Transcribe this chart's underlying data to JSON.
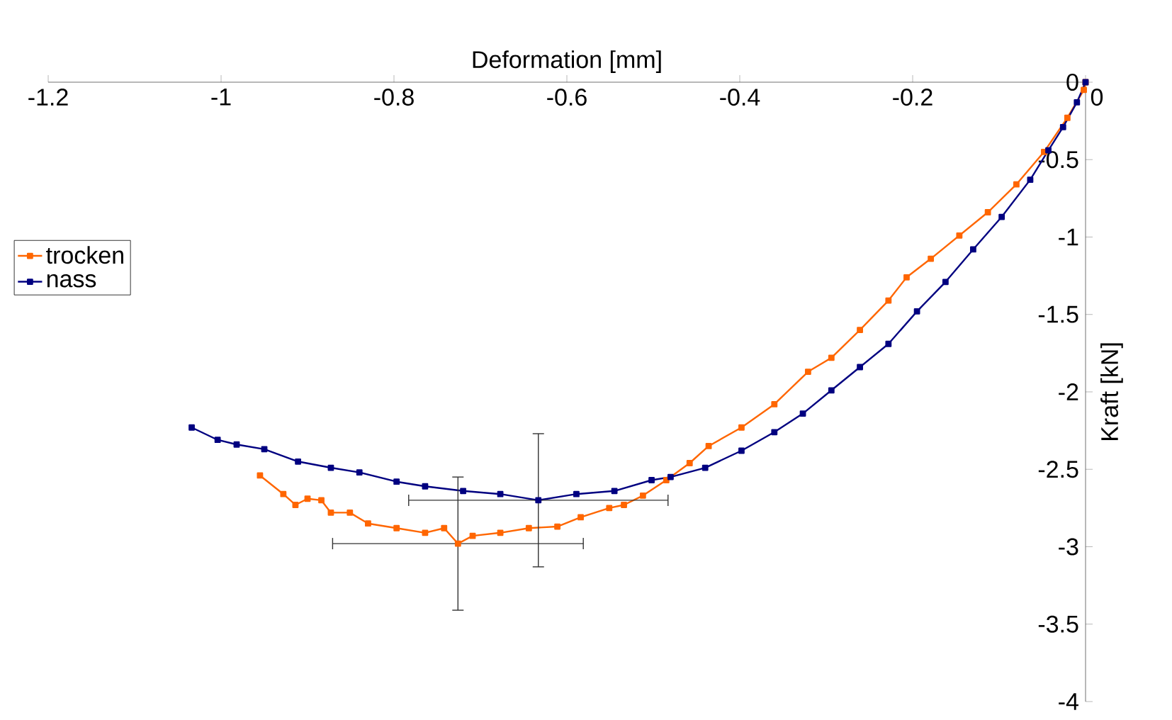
{
  "chart_data": {
    "type": "line",
    "xlabel": "Deformation [mm]",
    "ylabel": "Kraft [kN]",
    "xlim": [
      -1.2,
      0
    ],
    "ylim": [
      -4,
      0
    ],
    "xticks": [
      -1.2,
      -1,
      -0.8,
      -0.6,
      -0.4,
      -0.2,
      0
    ],
    "yticks": [
      -4,
      -3.5,
      -3,
      -2.5,
      -2,
      -1.5,
      -1,
      -0.5,
      0
    ],
    "legend": "left",
    "marker": "square",
    "line_style": "solid",
    "grid": false,
    "series": [
      {
        "name": "trocken",
        "color": "#ff6600",
        "x": [
          0,
          -0.002,
          -0.021,
          -0.048,
          -0.08,
          -0.113,
          -0.146,
          -0.179,
          -0.207,
          -0.228,
          -0.261,
          -0.294,
          -0.321,
          -0.36,
          -0.398,
          -0.436,
          -0.458,
          -0.485,
          -0.512,
          -0.534,
          -0.551,
          -0.584,
          -0.611,
          -0.644,
          -0.677,
          -0.709,
          -0.726,
          -0.742,
          -0.764,
          -0.797,
          -0.83,
          -0.851,
          -0.873,
          -0.884,
          -0.9,
          -0.914,
          -0.928,
          -0.955
        ],
        "values": [
          0,
          -0.05,
          -0.23,
          -0.45,
          -0.66,
          -0.84,
          -0.99,
          -1.14,
          -1.26,
          -1.41,
          -1.6,
          -1.78,
          -1.87,
          -2.08,
          -2.23,
          -2.35,
          -2.46,
          -2.57,
          -2.67,
          -2.73,
          -2.75,
          -2.81,
          -2.87,
          -2.88,
          -2.91,
          -2.93,
          -2.98,
          -2.88,
          -2.91,
          -2.88,
          -2.85,
          -2.78,
          -2.78,
          -2.7,
          -2.69,
          -2.73,
          -2.66,
          -2.54
        ],
        "errors": [
          null,
          null,
          null,
          null,
          null,
          null,
          null,
          null,
          null,
          null,
          null,
          null,
          null,
          null,
          null,
          null,
          null,
          null,
          null,
          null,
          null,
          null,
          null,
          null,
          null,
          null,
          0.43,
          null,
          null,
          null,
          null,
          null,
          null,
          null,
          null,
          null,
          null,
          null
        ],
        "xerrors": [
          null,
          null,
          null,
          null,
          null,
          null,
          null,
          null,
          null,
          null,
          null,
          null,
          null,
          null,
          null,
          null,
          null,
          null,
          null,
          null,
          null,
          null,
          null,
          null,
          null,
          null,
          0.145,
          null,
          null,
          null,
          null,
          null,
          null,
          null,
          null,
          null,
          null,
          null
        ]
      },
      {
        "name": "nass",
        "color": "#000080",
        "x": [
          0,
          -0.01,
          -0.026,
          -0.043,
          -0.064,
          -0.097,
          -0.13,
          -0.162,
          -0.195,
          -0.228,
          -0.261,
          -0.294,
          -0.327,
          -0.36,
          -0.398,
          -0.44,
          -0.48,
          -0.502,
          -0.545,
          -0.589,
          -0.633,
          -0.677,
          -0.72,
          -0.764,
          -0.797,
          -0.84,
          -0.873,
          -0.911,
          -0.95,
          -0.982,
          -1.004,
          -1.034
        ],
        "values": [
          0,
          -0.13,
          -0.29,
          -0.44,
          -0.63,
          -0.87,
          -1.08,
          -1.29,
          -1.48,
          -1.69,
          -1.84,
          -1.99,
          -2.14,
          -2.26,
          -2.38,
          -2.49,
          -2.55,
          -2.57,
          -2.64,
          -2.66,
          -2.7,
          -2.66,
          -2.64,
          -2.61,
          -2.58,
          -2.52,
          -2.49,
          -2.45,
          -2.37,
          -2.34,
          -2.31,
          -2.23
        ],
        "errors": [
          null,
          null,
          null,
          null,
          null,
          null,
          null,
          null,
          null,
          null,
          null,
          null,
          null,
          null,
          null,
          null,
          null,
          null,
          null,
          null,
          0.43,
          null,
          null,
          null,
          null,
          null,
          null,
          null,
          null,
          null,
          null,
          null
        ],
        "xerrors": [
          null,
          null,
          null,
          null,
          null,
          null,
          null,
          null,
          null,
          null,
          null,
          null,
          null,
          null,
          null,
          null,
          null,
          null,
          null,
          null,
          0.15,
          null,
          null,
          null,
          null,
          null,
          null,
          null,
          null,
          null,
          null,
          null
        ]
      }
    ]
  }
}
